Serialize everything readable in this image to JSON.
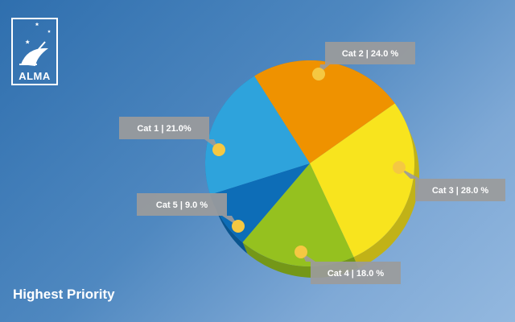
{
  "logo": {
    "text": "ALMA"
  },
  "footer": {
    "title": "Highest Priority"
  },
  "chart_data": {
    "type": "pie",
    "title": "",
    "slices": [
      {
        "label": "Cat 2 | 24.0 %",
        "value": 24.0,
        "color": "#ef9200"
      },
      {
        "label": "Cat 3 | 28.0 %",
        "value": 28.0,
        "color": "#f8e41e"
      },
      {
        "label": "Cat 4 | 18.0 %",
        "value": 18.0,
        "color": "#95c11f"
      },
      {
        "label": "Cat 5 | 9.0 %",
        "value": 9.0,
        "color": "#0d6db7"
      },
      {
        "label": "Cat 1 | 21.0%",
        "value": 21.0,
        "color": "#2ea3dc"
      }
    ],
    "label_box_color": "#9b9b9b",
    "marker_color": "#f5c842",
    "legend": "none"
  }
}
